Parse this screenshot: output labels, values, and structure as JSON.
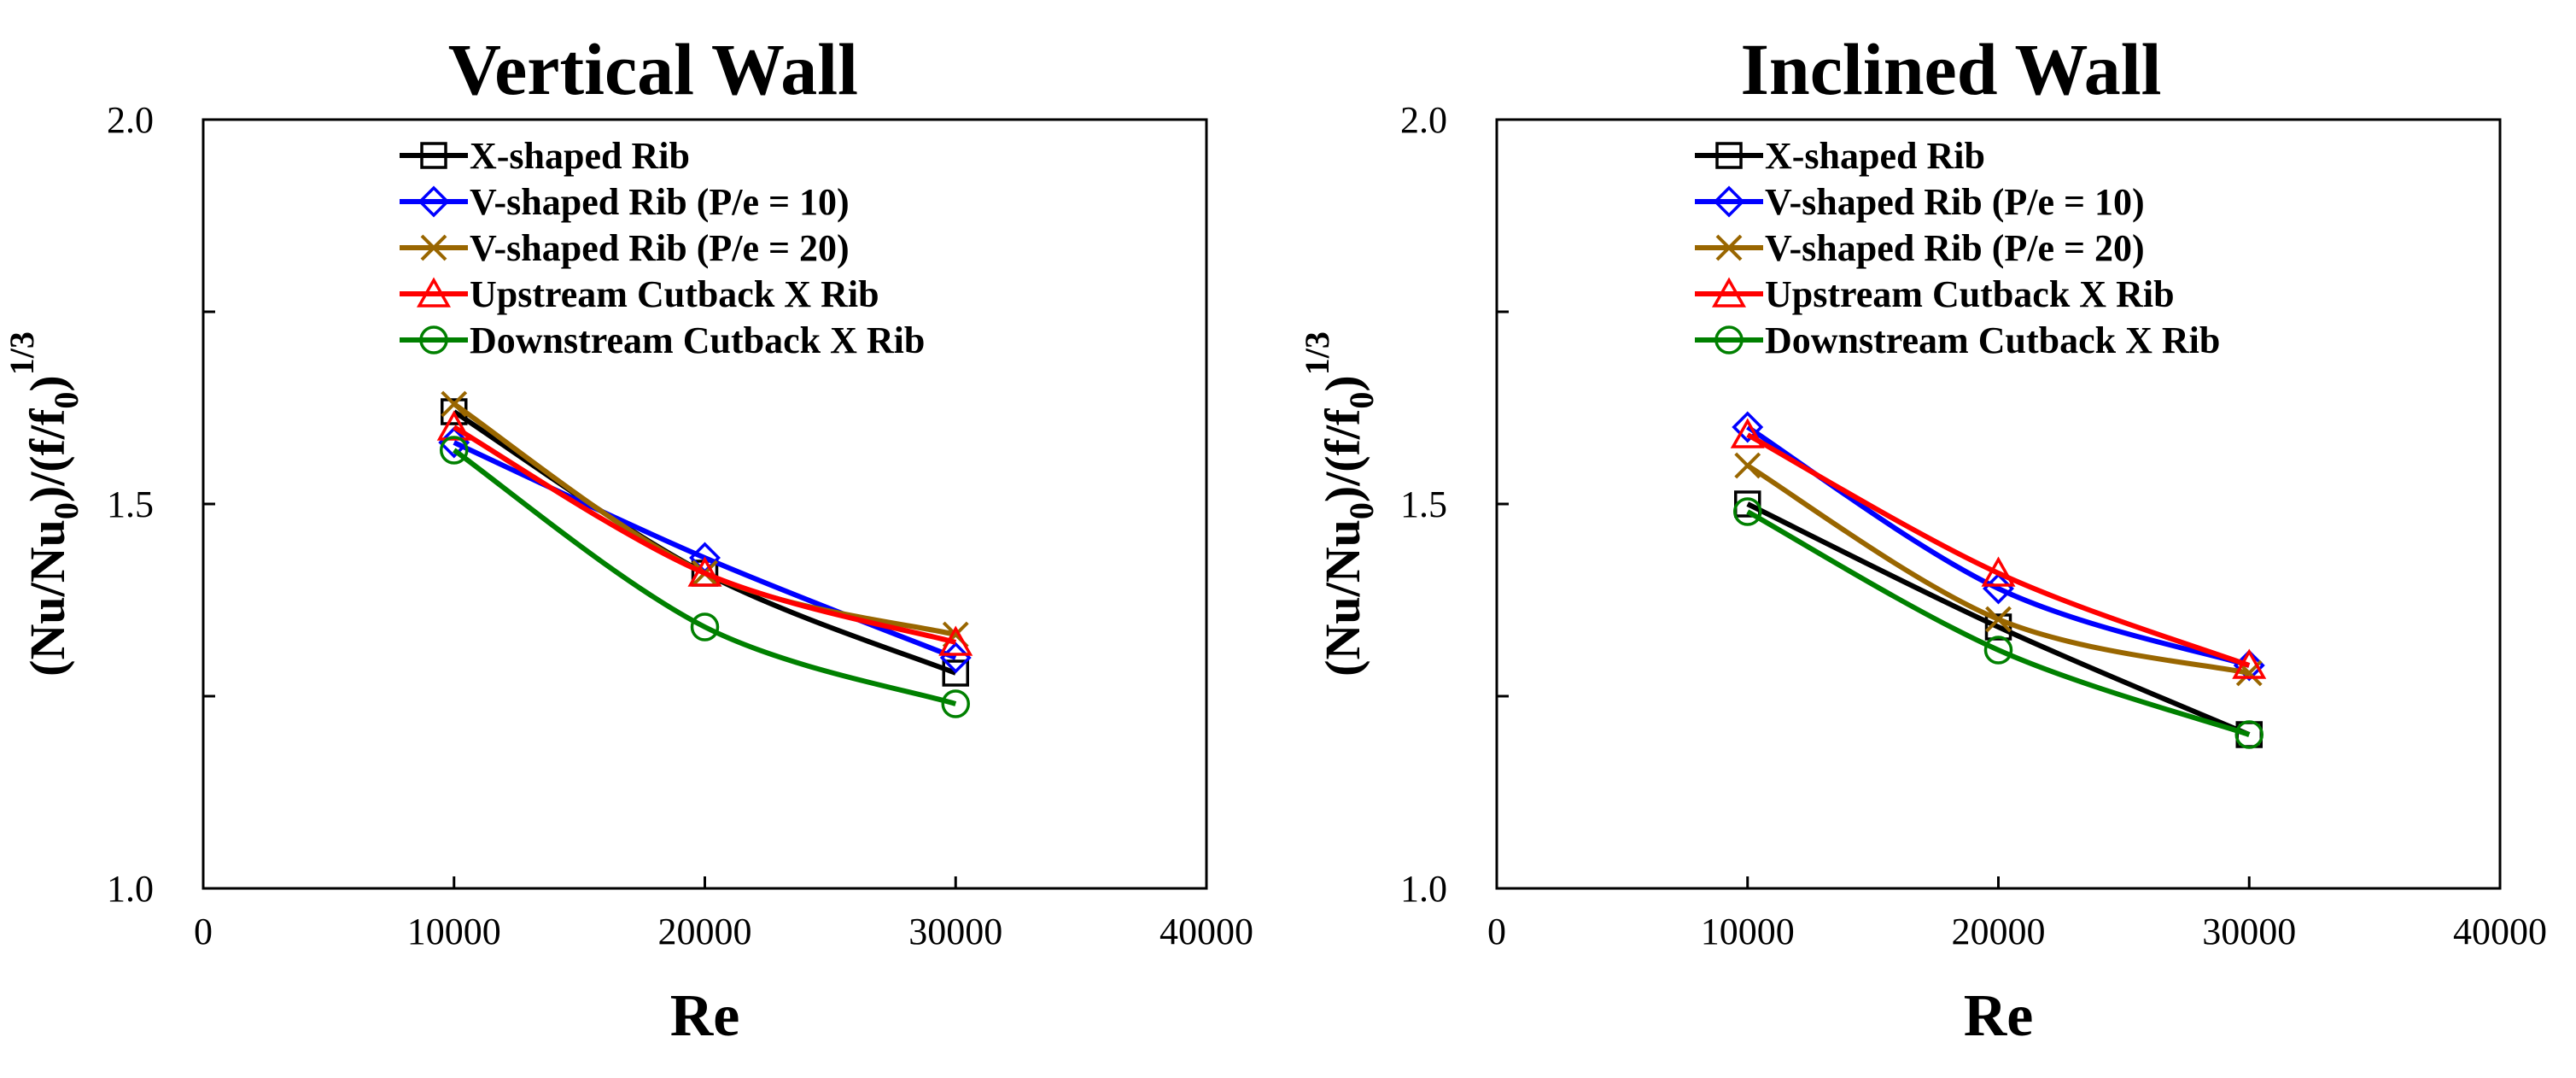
{
  "chart_data": [
    {
      "type": "line",
      "title": "Vertical Wall",
      "xlabel": "Re",
      "ylabel": {
        "main": "(Nu/Nu",
        "sub1": "0",
        "mid": ")/(f/f",
        "sub2": "0",
        "close": ")",
        "sup": "1/3"
      },
      "xlim": [
        0,
        40000
      ],
      "ylim": [
        1.0,
        2.0
      ],
      "xticks": [
        0,
        10000,
        20000,
        30000,
        40000
      ],
      "yticks": [
        1.0,
        1.5,
        2.0
      ],
      "ytick_labels": [
        "1.0",
        "1.5",
        "2.0"
      ],
      "grid": false,
      "legend_position": "top-left",
      "x": [
        10000,
        20000,
        30000
      ],
      "series": [
        {
          "name": "X-shaped Rib",
          "values": [
            1.62,
            1.41,
            1.28
          ],
          "color": "#000000",
          "marker": "square"
        },
        {
          "name": "V-shaped Rib (P/e = 10)",
          "values": [
            1.58,
            1.43,
            1.3
          ],
          "color": "#0000ff",
          "marker": "diamond"
        },
        {
          "name": "V-shaped Rib (P/e = 20)",
          "values": [
            1.63,
            1.41,
            1.33
          ],
          "color": "#996600",
          "marker": "x"
        },
        {
          "name": "Upstream Cutback X Rib",
          "values": [
            1.6,
            1.41,
            1.32
          ],
          "color": "#ff0000",
          "marker": "triangle"
        },
        {
          "name": "Downstream Cutback X Rib",
          "values": [
            1.57,
            1.34,
            1.24
          ],
          "color": "#008000",
          "marker": "circle"
        }
      ]
    },
    {
      "type": "line",
      "title": "Inclined Wall",
      "xlabel": "Re",
      "ylabel": {
        "main": "(Nu/Nu",
        "sub1": "0",
        "mid": ")/(f/f",
        "sub2": "0",
        "close": ")",
        "sup": "1/3"
      },
      "xlim": [
        0,
        40000
      ],
      "ylim": [
        1.0,
        2.0
      ],
      "xticks": [
        0,
        10000,
        20000,
        30000,
        40000
      ],
      "yticks": [
        1.0,
        1.5,
        2.0
      ],
      "ytick_labels": [
        "1.0",
        "1.5",
        "2.0"
      ],
      "grid": false,
      "legend_position": "top-left",
      "x": [
        10000,
        20000,
        30000
      ],
      "series": [
        {
          "name": "X-shaped Rib",
          "values": [
            1.5,
            1.34,
            1.2
          ],
          "color": "#000000",
          "marker": "square"
        },
        {
          "name": "V-shaped Rib (P/e = 10)",
          "values": [
            1.6,
            1.39,
            1.29
          ],
          "color": "#0000ff",
          "marker": "diamond"
        },
        {
          "name": "V-shaped Rib (P/e = 20)",
          "values": [
            1.55,
            1.35,
            1.28
          ],
          "color": "#996600",
          "marker": "x"
        },
        {
          "name": "Upstream Cutback X Rib",
          "values": [
            1.59,
            1.41,
            1.29
          ],
          "color": "#ff0000",
          "marker": "triangle"
        },
        {
          "name": "Downstream Cutback X Rib",
          "values": [
            1.49,
            1.31,
            1.2
          ],
          "color": "#008000",
          "marker": "circle"
        }
      ]
    }
  ]
}
